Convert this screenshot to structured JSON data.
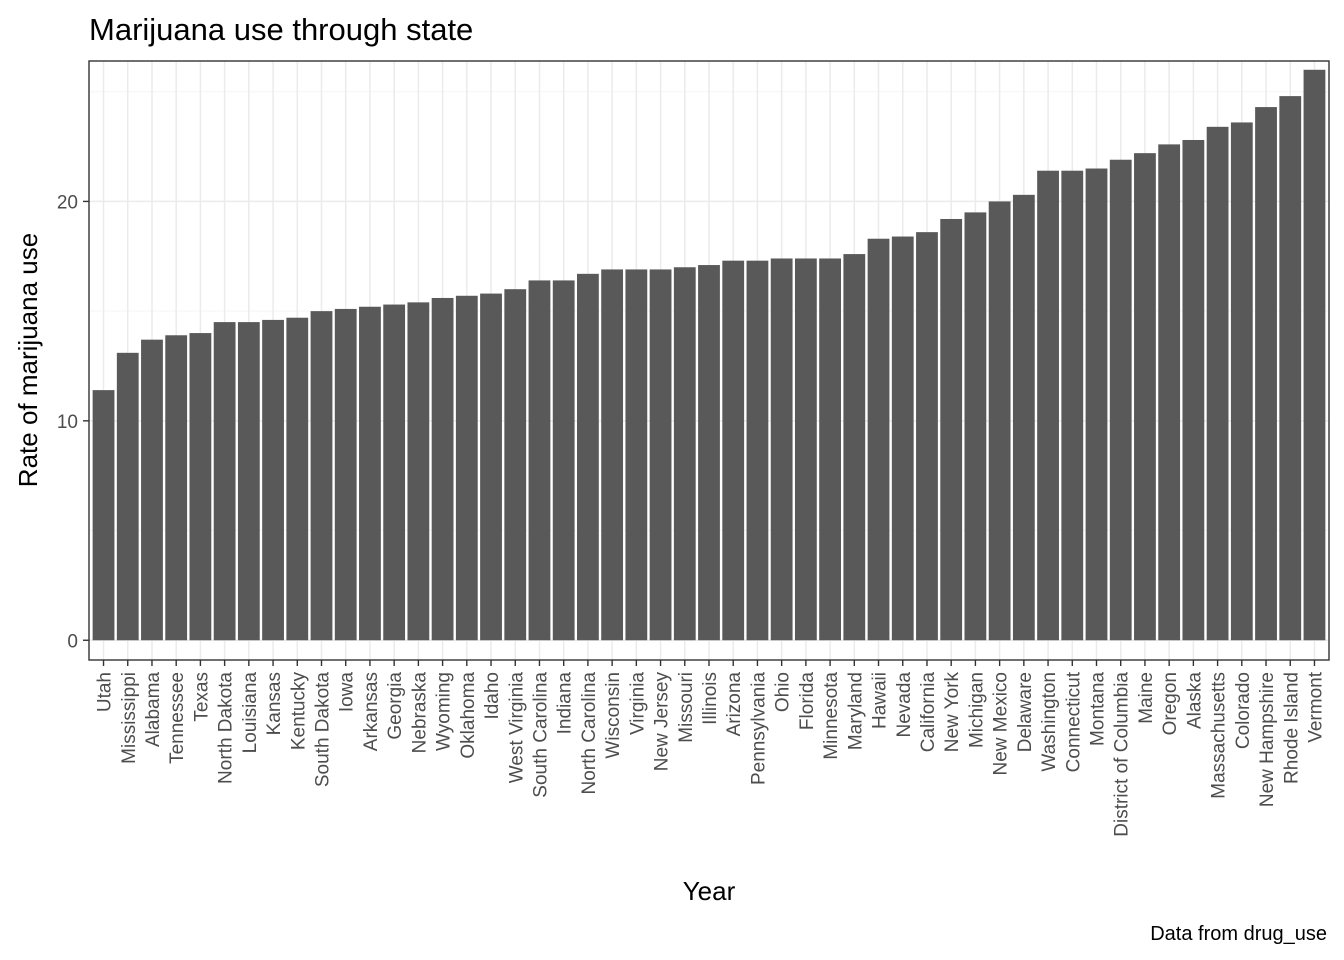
{
  "chart_data": {
    "type": "bar",
    "title": "Marijuana use through state",
    "xlabel": "Year",
    "ylabel": "Rate of marijuana use",
    "caption": "Data from drug_use",
    "ylim": [
      -0.9,
      26.4
    ],
    "yticks": [
      0,
      10,
      20
    ],
    "grid": true,
    "legend": "none",
    "colors": {
      "bar": "#595959",
      "grid_major": "#ebebeb",
      "grid_minor": "#f5f5f5",
      "panel_border": "#333333"
    },
    "categories": [
      "Utah",
      "Mississippi",
      "Alabama",
      "Tennessee",
      "Texas",
      "North Dakota",
      "Louisiana",
      "Kansas",
      "Kentucky",
      "South Dakota",
      "Iowa",
      "Arkansas",
      "Georgia",
      "Nebraska",
      "Wyoming",
      "Oklahoma",
      "Idaho",
      "West Virginia",
      "South Carolina",
      "Indiana",
      "North Carolina",
      "Wisconsin",
      "Virginia",
      "New Jersey",
      "Missouri",
      "Illinois",
      "Arizona",
      "Pennsylvania",
      "Ohio",
      "Florida",
      "Minnesota",
      "Maryland",
      "Hawaii",
      "Nevada",
      "California",
      "New York",
      "Michigan",
      "New Mexico",
      "Delaware",
      "Washington",
      "Connecticut",
      "Montana",
      "District of Columbia",
      "Maine",
      "Oregon",
      "Alaska",
      "Massachusetts",
      "Colorado",
      "New Hampshire",
      "Rhode Island",
      "Vermont"
    ],
    "values": [
      11.4,
      13.1,
      13.7,
      13.9,
      14.0,
      14.5,
      14.5,
      14.6,
      14.7,
      15.0,
      15.1,
      15.2,
      15.3,
      15.4,
      15.6,
      15.7,
      15.8,
      16.0,
      16.4,
      16.4,
      16.7,
      16.9,
      16.9,
      16.9,
      17.0,
      17.1,
      17.3,
      17.3,
      17.4,
      17.4,
      17.4,
      17.6,
      18.3,
      18.4,
      18.6,
      19.2,
      19.5,
      20.0,
      20.3,
      21.4,
      21.4,
      21.5,
      21.9,
      22.2,
      22.6,
      22.8,
      23.4,
      23.6,
      24.3,
      24.8,
      26.0
    ]
  }
}
